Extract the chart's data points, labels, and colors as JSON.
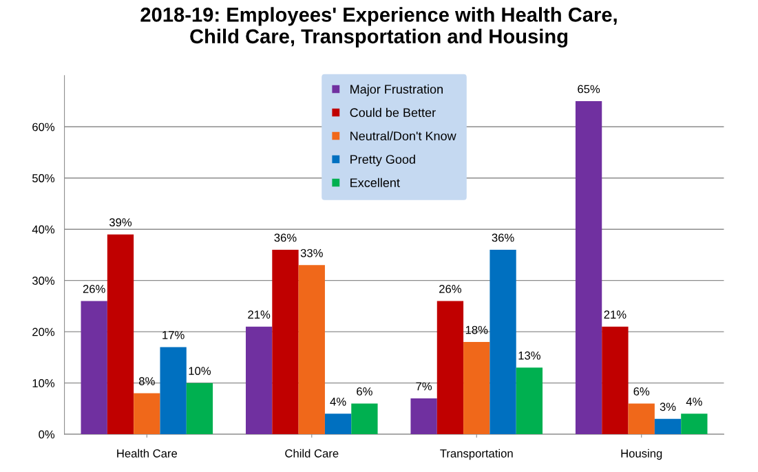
{
  "chart_data": {
    "type": "bar",
    "title": "2018-19: Employees' Experience with Health Care,\nChild Care, Transportation and Housing",
    "categories": [
      "Health Care",
      "Child Care",
      "Transportation",
      "Housing"
    ],
    "series": [
      {
        "name": "Major Frustration",
        "color": "#7030a0",
        "values": [
          26,
          21,
          7,
          65
        ],
        "value_labels": [
          "26%",
          "21%",
          "7%",
          "65%"
        ]
      },
      {
        "name": "Could be Better",
        "color": "#c00000",
        "values": [
          39,
          36,
          26,
          21
        ],
        "value_labels": [
          "39%",
          "36%",
          "26%",
          "21%"
        ]
      },
      {
        "name": "Neutral/Don't Know",
        "color": "#f0681a",
        "values": [
          8,
          33,
          18,
          6
        ],
        "value_labels": [
          "8%",
          "33%",
          "18%",
          "6%"
        ]
      },
      {
        "name": "Pretty Good",
        "color": "#0070c0",
        "values": [
          17,
          4,
          36,
          3
        ],
        "value_labels": [
          "17%",
          "4%",
          "36%",
          "3%"
        ]
      },
      {
        "name": "Excellent",
        "color": "#00b050",
        "values": [
          10,
          6,
          13,
          4
        ],
        "value_labels": [
          "10%",
          "6%",
          "13%",
          "4%"
        ]
      }
    ],
    "ylim": [
      0,
      70
    ],
    "yticks": [
      {
        "value": 0,
        "label": "0%"
      },
      {
        "value": 10,
        "label": "10%"
      },
      {
        "value": 20,
        "label": "20%"
      },
      {
        "value": 30,
        "label": "30%"
      },
      {
        "value": 40,
        "label": "40%"
      },
      {
        "value": 50,
        "label": "50%"
      },
      {
        "value": 60,
        "label": "60%"
      }
    ],
    "grid": "y",
    "legend": "top"
  }
}
